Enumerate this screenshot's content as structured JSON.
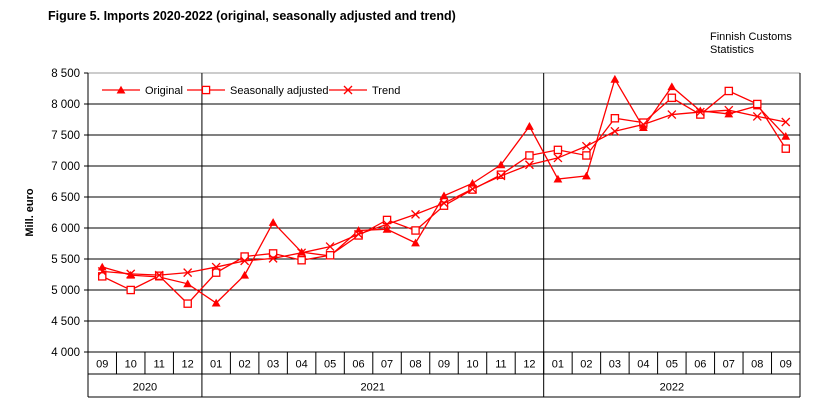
{
  "header": {
    "title": "Figure 5. Imports 2020-2022 (original, seasonally adjusted and trend)",
    "source_line1": "Finnish Customs",
    "source_line2": "Statistics"
  },
  "chart_data": {
    "type": "line",
    "title": "Figure 5. Imports 2020-2022 (original, seasonally adjusted and trend)",
    "ylabel": "Mill. euro",
    "xlabel": "",
    "ylim": [
      4000,
      8500
    ],
    "grid": "horizontal",
    "legend_position": "top-left-inside",
    "yticks": [
      8500,
      8000,
      7500,
      7000,
      6500,
      6000,
      5500,
      5000,
      4500,
      4000
    ],
    "ytick_labels": [
      "8 500",
      "8 000",
      "7 500",
      "7 000",
      "6 500",
      "6 000",
      "5 500",
      "5 000",
      "4 500",
      "4 000"
    ],
    "months": [
      "09",
      "10",
      "11",
      "12",
      "01",
      "02",
      "03",
      "04",
      "05",
      "06",
      "07",
      "08",
      "09",
      "10",
      "11",
      "12",
      "01",
      "02",
      "03",
      "04",
      "05",
      "06",
      "07",
      "08",
      "09"
    ],
    "year_groups": [
      {
        "label": "2020",
        "span": 4
      },
      {
        "label": "2021",
        "span": 12
      },
      {
        "label": "2022",
        "span": 9
      }
    ],
    "series": [
      {
        "name": "Original",
        "marker": "triangle",
        "color": "#FF0000",
        "values": [
          5370,
          5240,
          5210,
          5100,
          4790,
          5240,
          6090,
          5610,
          5550,
          5960,
          5980,
          5760,
          6520,
          6720,
          7020,
          7640,
          6790,
          6840,
          8400,
          7620,
          8280,
          7890,
          7840,
          7970,
          7480
        ]
      },
      {
        "name": "Seasonally adjusted",
        "marker": "square",
        "color": "#FF0000",
        "values": [
          5220,
          5000,
          5230,
          4780,
          5280,
          5540,
          5590,
          5480,
          5560,
          5880,
          6130,
          5960,
          6360,
          6620,
          6860,
          7170,
          7260,
          7170,
          7770,
          7700,
          8100,
          7830,
          8210,
          8000,
          7280
        ]
      },
      {
        "name": "Trend",
        "marker": "x",
        "color": "#FF0000",
        "values": [
          5300,
          5260,
          5240,
          5280,
          5370,
          5470,
          5510,
          5600,
          5700,
          5900,
          6060,
          6220,
          6400,
          6630,
          6840,
          7020,
          7130,
          7320,
          7560,
          7670,
          7830,
          7870,
          7900,
          7800,
          7710
        ]
      }
    ]
  }
}
